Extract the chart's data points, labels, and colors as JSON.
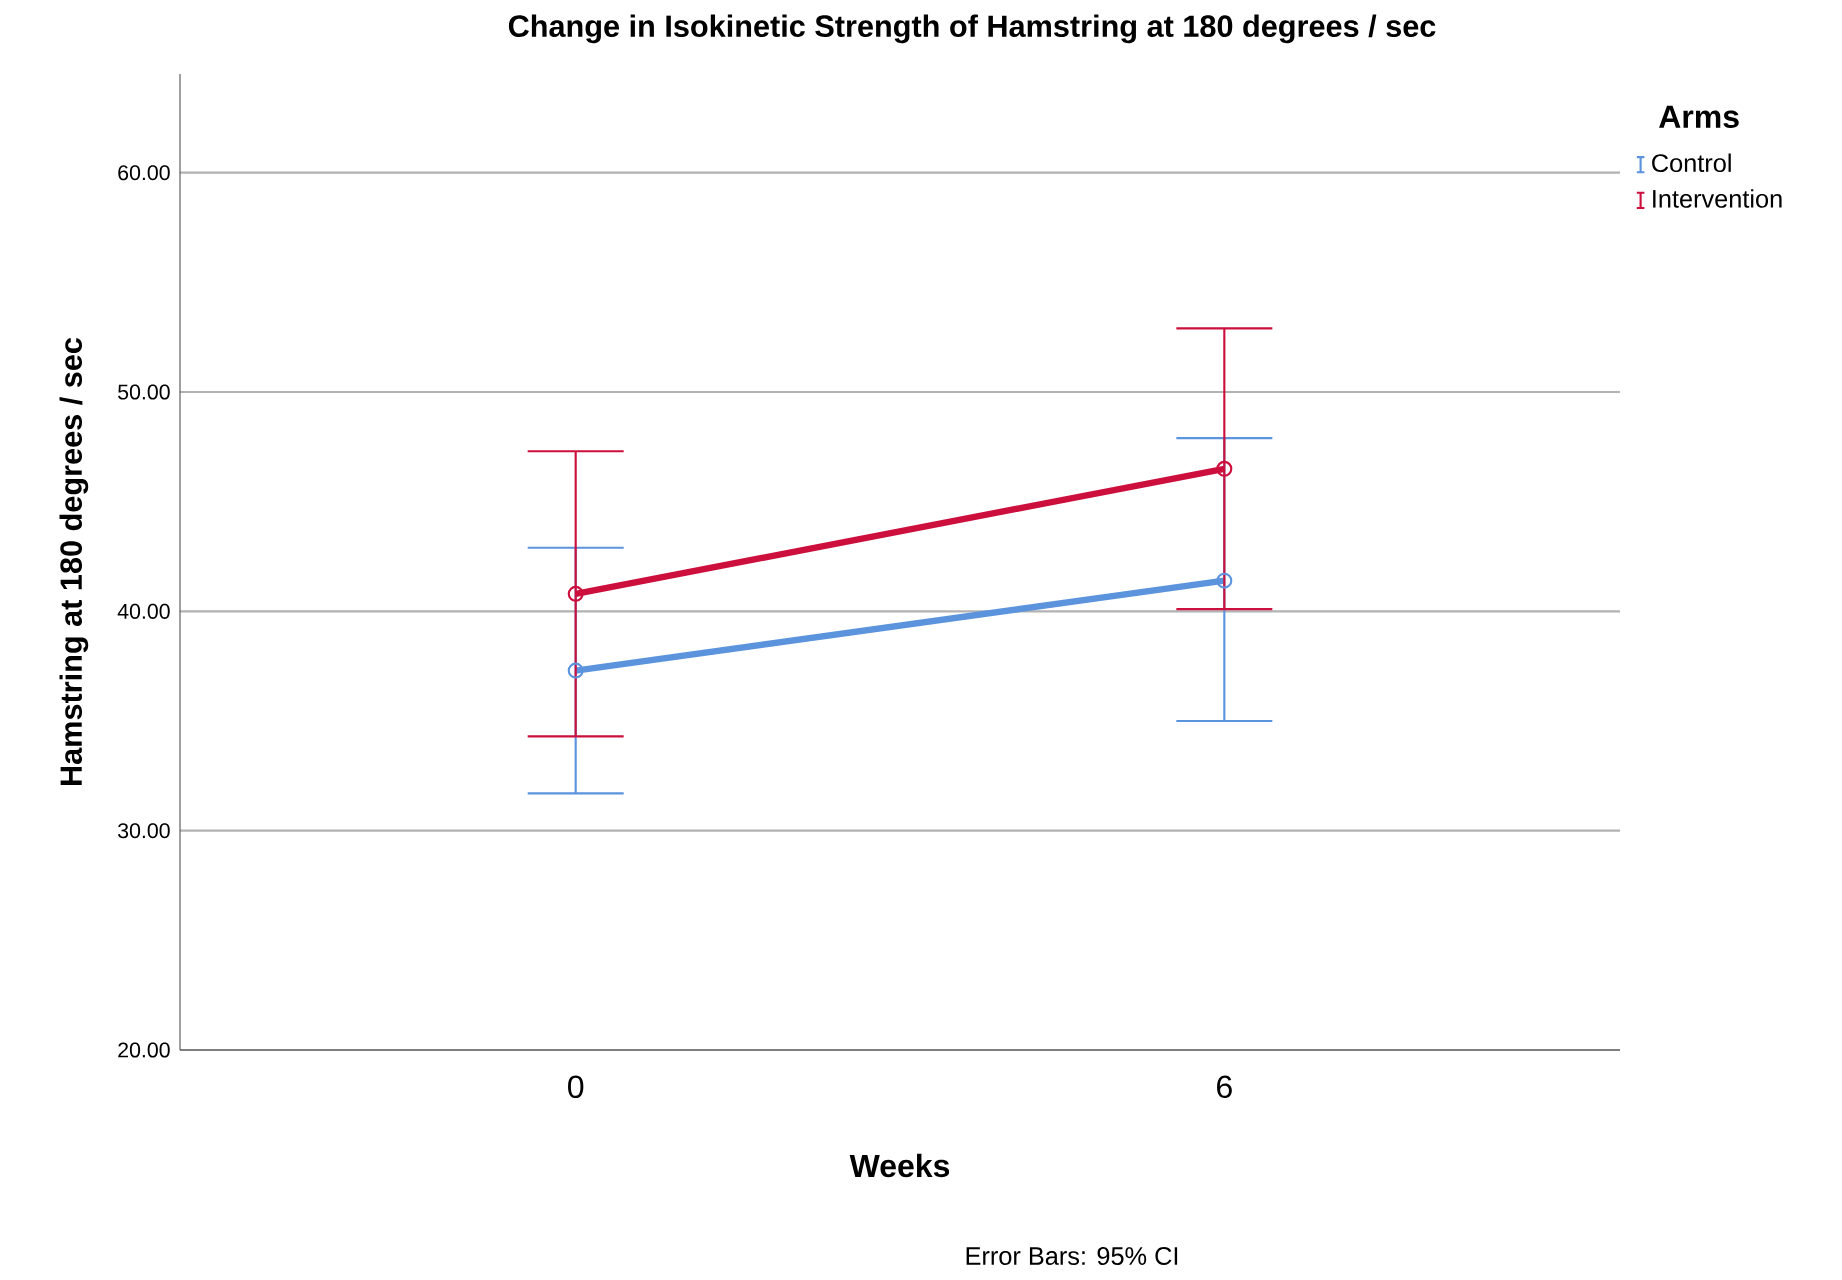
{
  "chart_data": {
    "type": "line",
    "title": "Change in Isokinetic Strength of Hamstring at 180 degrees / sec",
    "xlabel": "Weeks",
    "ylabel": "Hamstring at 180 degrees / sec",
    "legend_title": "Arms",
    "categories": [
      "0",
      "6"
    ],
    "series": [
      {
        "name": "Control",
        "color": "#5b93dd",
        "values": [
          37.3,
          41.4
        ],
        "errors": [
          [
            31.7,
            42.9
          ],
          [
            35.0,
            47.9
          ]
        ]
      },
      {
        "name": "Intervention",
        "color": "#cc0f3c",
        "values": [
          40.8,
          46.5
        ],
        "errors": [
          [
            34.3,
            47.3
          ],
          [
            40.1,
            52.9
          ]
        ]
      }
    ],
    "ylim": [
      20,
      64.5
    ],
    "yticks": [
      {
        "value": 20,
        "label": "20.00"
      },
      {
        "value": 30,
        "label": "30.00"
      },
      {
        "value": 40,
        "label": "40.00"
      },
      {
        "value": 50,
        "label": "50.00"
      },
      {
        "value": 60,
        "label": "60.00"
      }
    ],
    "grid": "y",
    "legend": "top right",
    "marker": "circle",
    "line_style": "solid",
    "annotations": [
      "Error Bars: 95% CI"
    ]
  }
}
